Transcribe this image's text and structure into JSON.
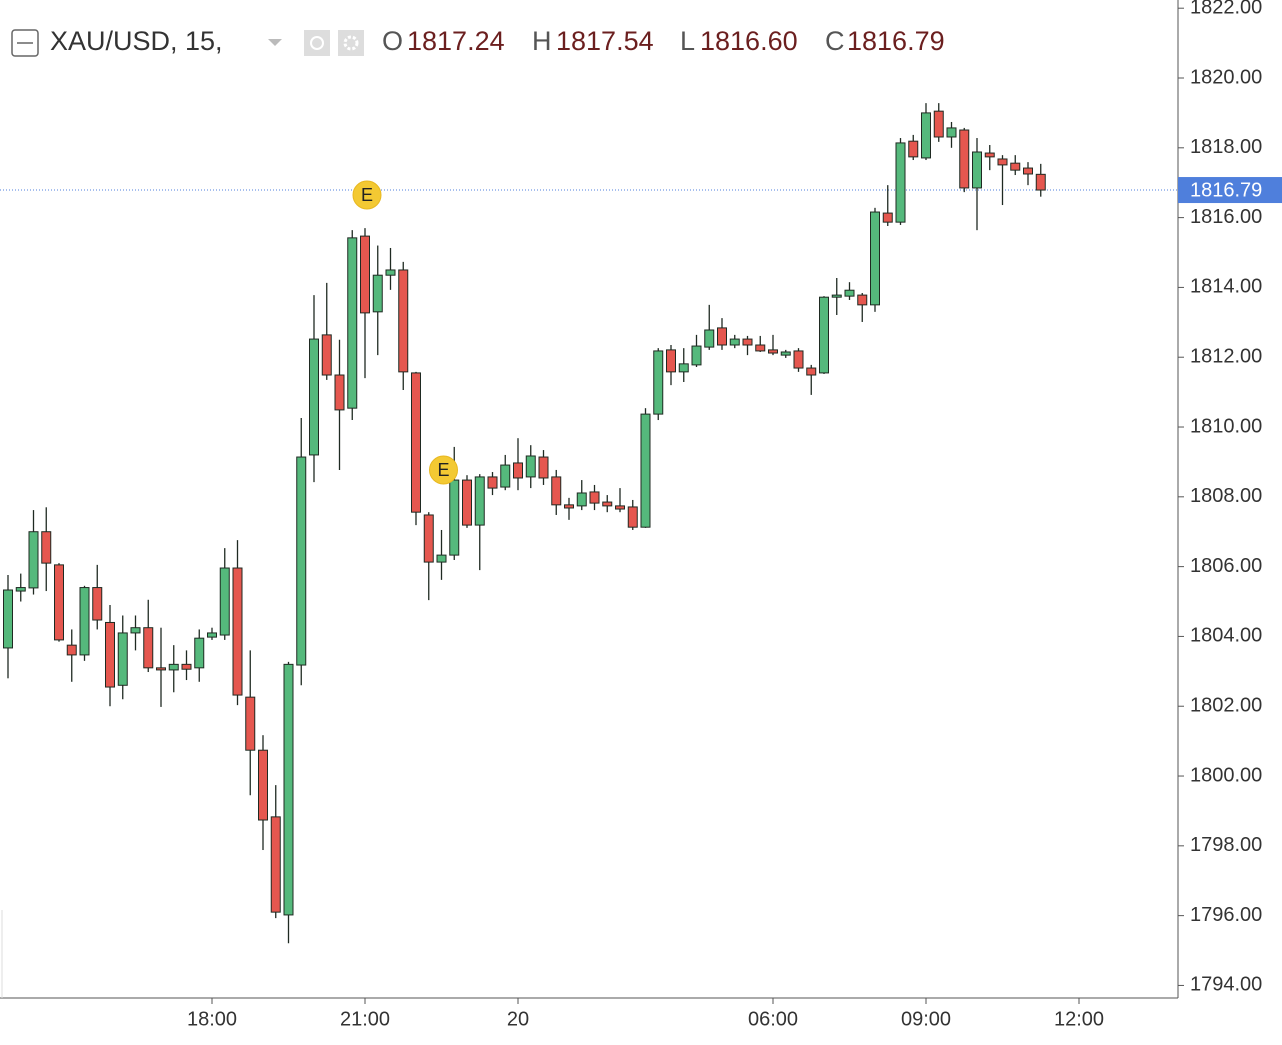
{
  "chart_data": {
    "type": "candlestick",
    "title": "XAU/USD, 15,",
    "header_ohlc": [
      {
        "key": "O",
        "value": "1817.24"
      },
      {
        "key": "H",
        "value": "1817.54"
      },
      {
        "key": "L",
        "value": "1816.60"
      },
      {
        "key": "C",
        "value": "1816.79"
      }
    ],
    "current_price": {
      "value": 1816.79,
      "label": "1816.79"
    },
    "up_color": "#55b97c",
    "down_color": "#e5574f",
    "outline_color": "#1f2a22",
    "price_line_color": "#4f7fdc",
    "events": [
      {
        "index": 28,
        "label": "E"
      },
      {
        "index": 34,
        "label": "E"
      }
    ],
    "categories": [
      null,
      null,
      null,
      null,
      null,
      null,
      null,
      null,
      null,
      null,
      null,
      null,
      null,
      null,
      null,
      null,
      "18:00",
      null,
      null,
      null,
      null,
      null,
      null,
      null,
      null,
      null,
      null,
      null,
      "21:00",
      null,
      null,
      null,
      null,
      null,
      null,
      null,
      null,
      null,
      null,
      null,
      "20",
      null,
      null,
      null,
      null,
      null,
      null,
      null,
      null,
      null,
      null,
      null,
      null,
      null,
      null,
      null,
      null,
      null,
      null,
      null,
      "06:00",
      null,
      null,
      null,
      null,
      null,
      null,
      null,
      null,
      null,
      null,
      null,
      "09:00",
      null,
      null,
      null,
      null,
      null,
      null,
      null,
      null,
      null,
      null,
      null,
      "12:00"
    ],
    "open": [
      1803.67,
      1805.3,
      1805.39,
      1807.0,
      1806.05,
      1803.75,
      1803.47,
      1805.4,
      1804.4,
      1802.6,
      1804.1,
      1804.25,
      1803.1,
      1803.04,
      1803.2,
      1803.1,
      1803.98,
      1804.04,
      1805.96,
      1802.26,
      1800.74,
      1798.83,
      1796.02,
      1803.18,
      1809.2,
      1812.64,
      1811.49,
      1810.54,
      1815.47,
      1813.3,
      1814.35,
      1814.5,
      1811.55,
      1807.48,
      1806.13,
      1806.33,
      1808.48,
      1807.19,
      1808.57,
      1808.28,
      1808.97,
      1808.57,
      1809.14,
      1808.57,
      1807.77,
      1807.74,
      1808.14,
      1807.85,
      1807.74,
      1807.71,
      1807.13,
      1810.37,
      1812.21,
      1811.58,
      1811.78,
      1812.29,
      1812.84,
      1812.35,
      1812.52,
      1812.35,
      1812.21,
      1812.06,
      1812.18,
      1811.69,
      1811.55,
      1813.72,
      1813.75,
      1813.78,
      1813.5,
      1816.13,
      1815.87,
      1818.19,
      1817.71,
      1819.05,
      1818.31,
      1818.51,
      1816.85,
      1817.85,
      1817.68,
      1817.56,
      1817.42,
      1817.24,
      null,
      null,
      null
    ],
    "high": [
      1805.76,
      1805.8,
      1807.62,
      1807.7,
      1806.1,
      1804.2,
      1805.45,
      1806.05,
      1804.9,
      1804.6,
      1804.6,
      1805.05,
      1804.25,
      1803.75,
      1803.6,
      1804.2,
      1804.25,
      1806.53,
      1806.76,
      1803.6,
      1801.17,
      1799.74,
      1803.27,
      1810.26,
      1813.78,
      1814.13,
      1812.5,
      1815.64,
      1815.7,
      1815.2,
      1815.13,
      1814.73,
      1811.58,
      1807.56,
      1807.05,
      1809.43,
      1808.62,
      1808.65,
      1808.71,
      1809.2,
      1809.68,
      1809.48,
      1809.34,
      1808.77,
      1807.97,
      1808.48,
      1808.34,
      1808.05,
      1808.25,
      1807.91,
      1810.54,
      1812.26,
      1812.35,
      1812.26,
      1812.64,
      1813.5,
      1813.12,
      1812.64,
      1812.61,
      1812.61,
      1812.64,
      1812.21,
      1812.26,
      1811.78,
      1813.75,
      1814.27,
      1814.15,
      1813.84,
      1816.28,
      1816.93,
      1818.28,
      1818.37,
      1819.28,
      1819.28,
      1818.74,
      1818.57,
      1818.28,
      1818.08,
      1817.79,
      1817.79,
      1817.59,
      1817.54,
      null,
      null,
      null
    ],
    "low": [
      1802.8,
      1805.0,
      1805.2,
      1805.3,
      1803.85,
      1802.7,
      1803.3,
      1804.2,
      1802.0,
      1802.2,
      1803.6,
      1802.98,
      1801.98,
      1802.4,
      1802.75,
      1802.7,
      1803.9,
      1803.9,
      1802.03,
      1799.45,
      1797.88,
      1795.93,
      1795.21,
      1802.6,
      1808.42,
      1811.35,
      1808.77,
      1810.2,
      1811.4,
      1812.06,
      1813.93,
      1811.06,
      1807.19,
      1805.04,
      1805.62,
      1806.19,
      1807.11,
      1805.9,
      1808.05,
      1808.19,
      1808.19,
      1808.25,
      1808.34,
      1807.48,
      1807.34,
      1807.62,
      1807.62,
      1807.56,
      1807.56,
      1807.05,
      1807.11,
      1810.2,
      1811.2,
      1811.29,
      1811.72,
      1812.21,
      1812.21,
      1812.26,
      1812.06,
      1812.15,
      1812.06,
      1811.98,
      1811.58,
      1810.92,
      1811.52,
      1813.21,
      1813.64,
      1813.01,
      1813.3,
      1815.76,
      1815.79,
      1817.65,
      1817.65,
      1818.17,
      1818.0,
      1816.73,
      1815.64,
      1817.36,
      1816.36,
      1817.22,
      1816.93,
      1816.6,
      null,
      null,
      null
    ],
    "close": [
      1805.33,
      1805.4,
      1807.0,
      1806.1,
      1803.9,
      1803.47,
      1805.4,
      1804.47,
      1802.55,
      1804.1,
      1804.25,
      1803.1,
      1803.04,
      1803.2,
      1803.06,
      1803.95,
      1804.1,
      1805.96,
      1802.32,
      1800.74,
      1798.74,
      1796.1,
      1803.2,
      1809.14,
      1812.52,
      1811.49,
      1810.49,
      1815.42,
      1813.27,
      1814.35,
      1814.5,
      1811.58,
      1807.56,
      1806.13,
      1806.33,
      1808.48,
      1807.19,
      1808.57,
      1808.25,
      1808.91,
      1808.54,
      1809.17,
      1808.54,
      1807.77,
      1807.68,
      1808.11,
      1807.82,
      1807.74,
      1807.65,
      1807.13,
      1810.37,
      1812.18,
      1811.58,
      1811.81,
      1812.32,
      1812.78,
      1812.35,
      1812.52,
      1812.35,
      1812.18,
      1812.12,
      1812.15,
      1811.69,
      1811.49,
      1813.72,
      1813.78,
      1813.92,
      1813.5,
      1816.16,
      1815.87,
      1818.14,
      1817.74,
      1819.0,
      1818.31,
      1818.57,
      1816.85,
      1817.88,
      1817.74,
      1817.51,
      1817.36,
      1817.25,
      1816.79,
      null,
      null,
      null
    ],
    "ylim": [
      1793.64,
      1822.235
    ],
    "yticks": [
      {
        "value": 1794,
        "label": "1794.00"
      },
      {
        "value": 1796,
        "label": "1796.00"
      },
      {
        "value": 1798,
        "label": "1798.00"
      },
      {
        "value": 1800,
        "label": "1800.00"
      },
      {
        "value": 1802,
        "label": "1802.00"
      },
      {
        "value": 1804,
        "label": "1804.00"
      },
      {
        "value": 1806,
        "label": "1806.00"
      },
      {
        "value": 1808,
        "label": "1808.00"
      },
      {
        "value": 1810,
        "label": "1810.00"
      },
      {
        "value": 1812,
        "label": "1812.00"
      },
      {
        "value": 1814,
        "label": "1814.00"
      },
      {
        "value": 1816,
        "label": "1816.00"
      },
      {
        "value": 1818,
        "label": "1818.00"
      },
      {
        "value": 1820,
        "label": "1820.00"
      },
      {
        "value": 1822,
        "label": "1822.00"
      }
    ],
    "grid": false
  }
}
